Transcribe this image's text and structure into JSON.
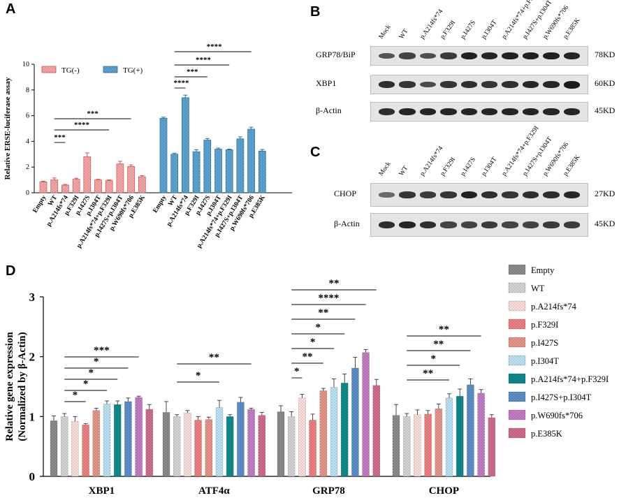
{
  "panels": {
    "A": "A",
    "B": "B",
    "C": "C",
    "D": "D"
  },
  "chart_data": [
    {
      "id": "A",
      "type": "bar",
      "ylabel": "Relative ERSE-luciferase assay",
      "ylim": [
        0,
        10
      ],
      "yticks": [
        0,
        2,
        4,
        6,
        8,
        10
      ],
      "legend": [
        {
          "name": "TG(-)",
          "color": "#f2a6a6"
        },
        {
          "name": "TG(+)",
          "color": "#5ba3cf"
        }
      ],
      "categories": [
        "Empty",
        "WT",
        "p.A214fs*74",
        "p.F329I",
        "p.I427S",
        "p.I304T",
        "p.A214fs*74+p.F329I",
        "p.I427S+p.I304T",
        "p.W690fs*706",
        "p.E385K"
      ],
      "series": [
        {
          "name": "TG(-)",
          "values": [
            0.85,
            1.0,
            0.6,
            1.05,
            2.8,
            1.0,
            0.95,
            2.25,
            2.05,
            1.25
          ],
          "errors": [
            0.05,
            0.15,
            0.05,
            0.08,
            0.3,
            0.05,
            0.05,
            0.2,
            0.12,
            0.08
          ]
        },
        {
          "name": "TG(+)",
          "values": [
            5.8,
            3.0,
            7.4,
            3.2,
            4.1,
            3.4,
            3.35,
            4.2,
            4.95,
            3.25
          ],
          "errors": [
            0.08,
            0.08,
            0.2,
            0.15,
            0.12,
            0.08,
            0.05,
            0.15,
            0.15,
            0.12
          ]
        }
      ],
      "brackets_neg": [
        {
          "from": 1,
          "to": 2,
          "label": "***"
        },
        {
          "from": 1,
          "to": 6,
          "label": "****"
        },
        {
          "from": 1,
          "to": 8,
          "label": "***"
        }
      ],
      "brackets_pos": [
        {
          "from": 1,
          "to": 2,
          "label": "****"
        },
        {
          "from": 1,
          "to": 4,
          "label": "***"
        },
        {
          "from": 1,
          "to": 6,
          "label": "****"
        },
        {
          "from": 1,
          "to": 8,
          "label": "****"
        }
      ]
    },
    {
      "id": "D",
      "type": "bar",
      "ylabel": "Relative gene expression",
      "ylabel2": "(Normalized by β-Actin)",
      "ylim": [
        0,
        3
      ],
      "yticks": [
        0,
        1,
        2,
        3
      ],
      "groups": [
        "XBP1",
        "ATF4α",
        "GRP78",
        "CHOP"
      ],
      "series": [
        {
          "name": "Empty",
          "color": "#8c8c8c",
          "values": [
            0.93,
            1.07,
            1.08,
            1.02
          ],
          "errors": [
            0.08,
            0.18,
            0.1,
            0.18
          ]
        },
        {
          "name": "WT",
          "color": "#d6d6d6",
          "values": [
            1.0,
            1.0,
            1.0,
            1.0
          ],
          "errors": [
            0.05,
            0.03,
            0.08,
            0.05
          ]
        },
        {
          "name": "p.A214fs*74",
          "color": "#fde0dc",
          "values": [
            0.92,
            1.06,
            1.31,
            1.03
          ],
          "errors": [
            0.08,
            0.04,
            0.06,
            0.08
          ]
        },
        {
          "name": "p.F329I",
          "color": "#f28080",
          "values": [
            0.86,
            0.94,
            0.94,
            1.04
          ],
          "errors": [
            0.02,
            0.06,
            0.1,
            0.06
          ]
        },
        {
          "name": "p.I427S",
          "color": "#e8968a",
          "values": [
            1.1,
            0.95,
            1.43,
            1.13
          ],
          "errors": [
            0.04,
            0.04,
            0.04,
            0.08
          ]
        },
        {
          "name": "p.I304T",
          "color": "#bde3f6",
          "values": [
            1.21,
            1.15,
            1.49,
            1.31
          ],
          "errors": [
            0.05,
            0.12,
            0.14,
            0.07
          ]
        },
        {
          "name": "p.A214fs*74+p.F329I",
          "color": "#0f8a8f",
          "values": [
            1.2,
            1.0,
            1.56,
            1.34
          ],
          "errors": [
            0.06,
            0.03,
            0.15,
            0.12
          ]
        },
        {
          "name": "p.I427S+p.I304T",
          "color": "#5b8fc9",
          "values": [
            1.25,
            1.24,
            1.81,
            1.53
          ],
          "errors": [
            0.06,
            0.08,
            0.18,
            0.1
          ]
        },
        {
          "name": "p.W690fs*706",
          "color": "#c57ec5",
          "values": [
            1.32,
            1.12,
            2.07,
            1.39
          ],
          "errors": [
            0.02,
            0.02,
            0.05,
            0.06
          ]
        },
        {
          "name": "p.E385K",
          "color": "#d36c8e",
          "values": [
            1.12,
            1.02,
            1.52,
            0.98
          ],
          "errors": [
            0.08,
            0.05,
            0.1,
            0.05
          ]
        }
      ],
      "brackets": [
        {
          "group": 0,
          "from": 1,
          "to": 3,
          "label": "*"
        },
        {
          "group": 0,
          "from": 1,
          "to": 5,
          "label": "*"
        },
        {
          "group": 0,
          "from": 1,
          "to": 6,
          "label": "*"
        },
        {
          "group": 0,
          "from": 1,
          "to": 7,
          "label": "*"
        },
        {
          "group": 0,
          "from": 1,
          "to": 8,
          "label": "***"
        },
        {
          "group": 1,
          "from": 1,
          "to": 5,
          "label": "*"
        },
        {
          "group": 1,
          "from": 1,
          "to": 8,
          "label": "**"
        },
        {
          "group": 2,
          "from": 1,
          "to": 2,
          "label": "*"
        },
        {
          "group": 2,
          "from": 1,
          "to": 4,
          "label": "**"
        },
        {
          "group": 2,
          "from": 1,
          "to": 5,
          "label": "*"
        },
        {
          "group": 2,
          "from": 1,
          "to": 6,
          "label": "*"
        },
        {
          "group": 2,
          "from": 1,
          "to": 7,
          "label": "**"
        },
        {
          "group": 2,
          "from": 1,
          "to": 8,
          "label": "****"
        },
        {
          "group": 2,
          "from": 1,
          "to": 9,
          "label": "**"
        },
        {
          "group": 3,
          "from": 1,
          "to": 5,
          "label": "**"
        },
        {
          "group": 3,
          "from": 1,
          "to": 6,
          "label": "*"
        },
        {
          "group": 3,
          "from": 1,
          "to": 7,
          "label": "**"
        },
        {
          "group": 3,
          "from": 1,
          "to": 8,
          "label": "**"
        }
      ]
    }
  ],
  "blots": {
    "B": {
      "lanes": [
        "Mock",
        "WT",
        "p.A214fs*74",
        "p.F329I",
        "p.I427S",
        "p.I304T",
        "p.A214fs*74+p.F329I",
        "p.I427S+p.I304T",
        "p.W690fs*706",
        "p.E385K"
      ],
      "rows": [
        {
          "label": "GRP78/BiP",
          "kd": "78KD",
          "intensity": [
            0.55,
            0.7,
            0.6,
            0.75,
            0.95,
            0.9,
            0.95,
            0.95,
            0.95,
            0.92
          ]
        },
        {
          "label": "XBP1",
          "kd": "60KD",
          "intensity": [
            0.85,
            0.8,
            0.65,
            0.8,
            0.85,
            0.8,
            0.85,
            0.9,
            0.9,
            1.0
          ]
        },
        {
          "label": "β-Actin",
          "kd": "45KD",
          "intensity": [
            0.85,
            0.9,
            0.9,
            0.9,
            0.9,
            0.9,
            0.9,
            0.9,
            0.9,
            0.9
          ]
        }
      ]
    },
    "C": {
      "lanes": [
        "Mock",
        "WT",
        "p.A214fs*74",
        "p.F329I",
        "p.I427S",
        "p.I304T",
        "p.A214fs*74+p.F329I",
        "p.I427S+p.I304T",
        "p.W690fs*706",
        "p.E385K"
      ],
      "rows": [
        {
          "label": "CHOP",
          "kd": "27KD",
          "intensity": [
            0.4,
            0.8,
            0.75,
            0.8,
            0.95,
            0.85,
            0.8,
            0.85,
            0.85,
            0.9
          ]
        },
        {
          "label": "β-Actin",
          "kd": "45KD",
          "intensity": [
            0.85,
            0.9,
            0.85,
            0.7,
            0.7,
            0.75,
            0.7,
            0.7,
            0.75,
            0.75
          ]
        }
      ]
    }
  }
}
